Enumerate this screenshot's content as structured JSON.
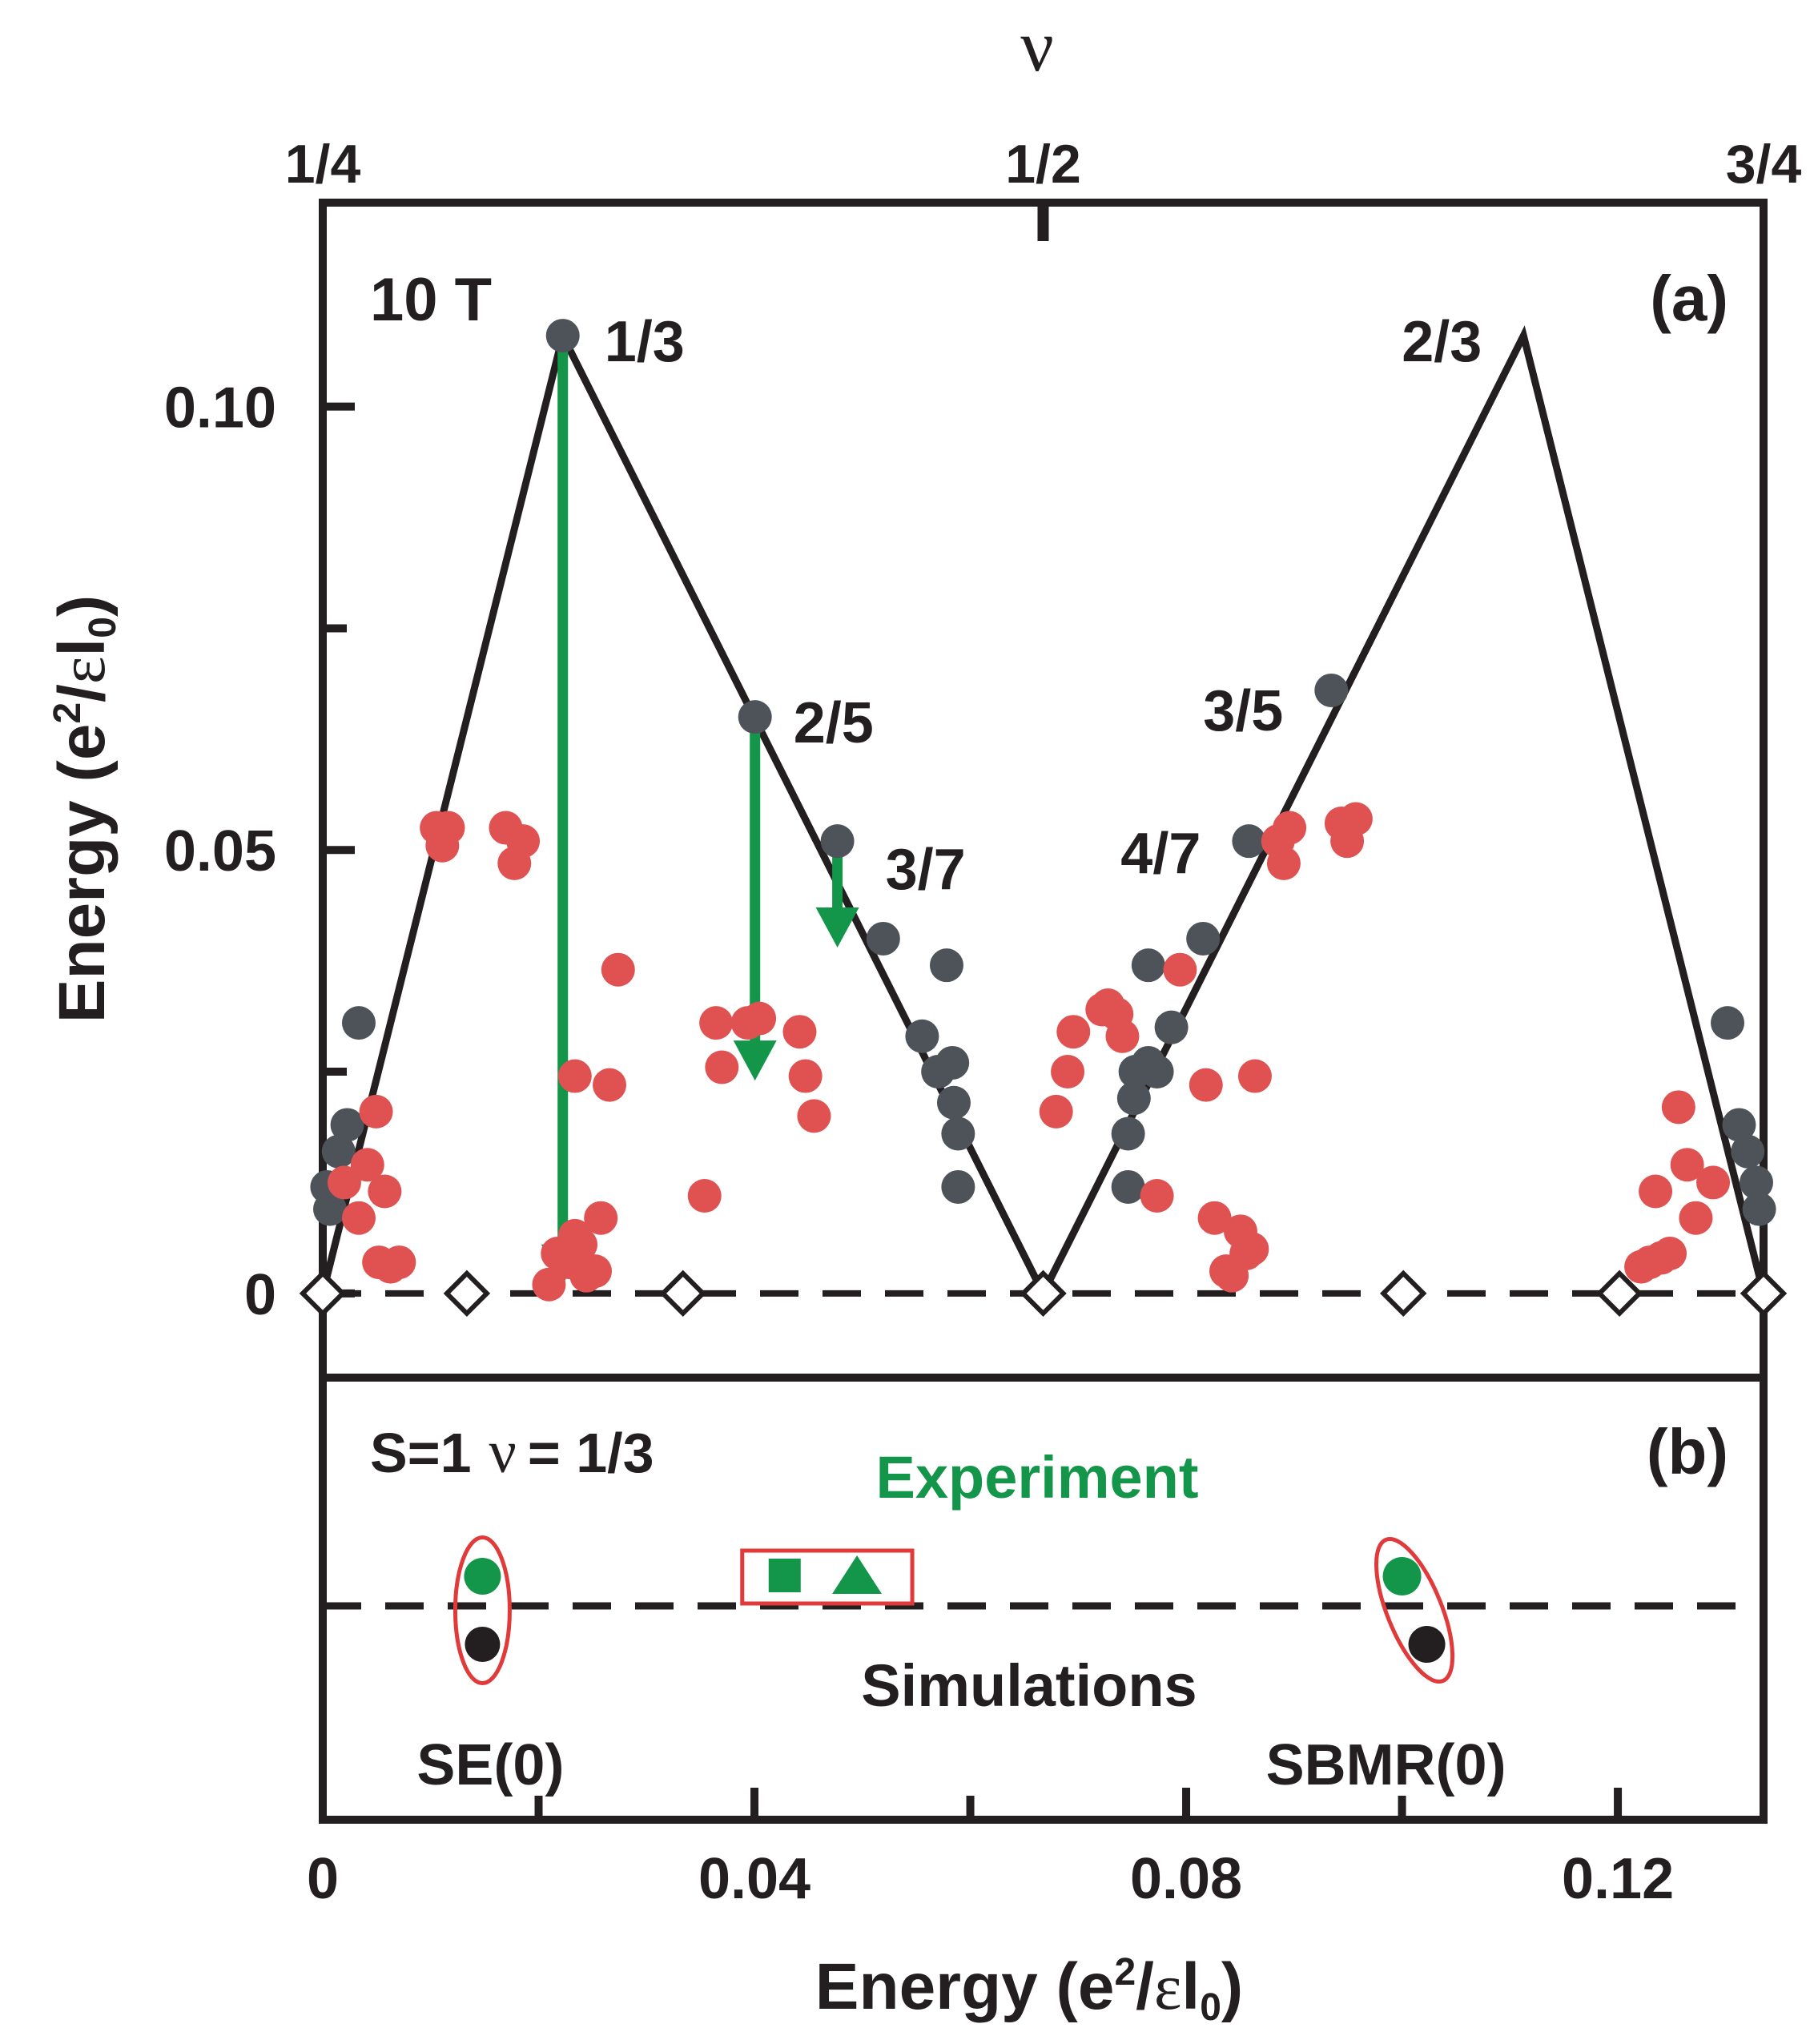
{
  "chart_data": [
    {
      "type": "scatter",
      "panel_label": "(a)",
      "field_label": "10 T",
      "top_axis": {
        "title": "ν",
        "ticks": [
          {
            "value": 0.25,
            "label": "1/4"
          },
          {
            "value": 0.5,
            "label": "1/2"
          },
          {
            "value": 0.75,
            "label": "3/4"
          }
        ],
        "range": [
          0.25,
          0.75
        ]
      },
      "ylabel": "Energy (e²/εl₀)",
      "ylim": [
        -0.0095,
        0.123
      ],
      "yticks": [
        {
          "value": 0,
          "label": "0"
        },
        {
          "value": 0.05,
          "label": "0.05"
        },
        {
          "value": 0.1,
          "label": "0.10"
        }
      ],
      "yticks_minor": [
        0.025,
        0.075
      ],
      "peak_line": {
        "color": "#231f20",
        "points": [
          [
            0.25,
            0
          ],
          [
            0.3333,
            0.108
          ],
          [
            0.5,
            0
          ],
          [
            0.6667,
            0.108
          ],
          [
            0.75,
            0
          ]
        ]
      },
      "zero_line": {
        "y": 0,
        "style": "dashed"
      },
      "series": [
        {
          "name": "gap energies",
          "color": "#4d5359",
          "points": [
            [
              0.3333,
              0.108
            ],
            [
              0.4,
              0.065
            ],
            [
              0.4286,
              0.051
            ],
            [
              0.6,
              0.068
            ],
            [
              0.5714,
              0.051
            ],
            [
              0.2515,
              0.012
            ],
            [
              0.2525,
              0.0095
            ],
            [
              0.2555,
              0.016
            ],
            [
              0.2585,
              0.019
            ],
            [
              0.2625,
              0.0305
            ],
            [
              0.4445,
              0.04
            ],
            [
              0.458,
              0.029
            ],
            [
              0.4665,
              0.037
            ],
            [
              0.4635,
              0.025
            ],
            [
              0.4685,
              0.026
            ],
            [
              0.469,
              0.0215
            ],
            [
              0.4705,
              0.018
            ],
            [
              0.4705,
              0.012
            ],
            [
              0.5295,
              0.012
            ],
            [
              0.5295,
              0.018
            ],
            [
              0.5315,
              0.022
            ],
            [
              0.532,
              0.025
            ],
            [
              0.5365,
              0.026
            ],
            [
              0.5365,
              0.037
            ],
            [
              0.5395,
              0.025
            ],
            [
              0.5445,
              0.03
            ],
            [
              0.5555,
              0.04
            ],
            [
              0.7375,
              0.0305
            ],
            [
              0.7415,
              0.019
            ],
            [
              0.7445,
              0.016
            ],
            [
              0.7475,
              0.0125
            ],
            [
              0.7485,
              0.0095
            ]
          ]
        },
        {
          "name": "red points",
          "color": "#e05252",
          "points": [
            [
              0.2575,
              0.0125
            ],
            [
              0.2625,
              0.0085
            ],
            [
              0.2655,
              0.0145
            ],
            [
              0.2685,
              0.0205
            ],
            [
              0.2695,
              0.0035
            ],
            [
              0.2715,
              0.0115
            ],
            [
              0.2735,
              0.003
            ],
            [
              0.2765,
              0.0035
            ],
            [
              0.2895,
              0.0525
            ],
            [
              0.2915,
              0.0505
            ],
            [
              0.2935,
              0.0525
            ],
            [
              0.3135,
              0.0525
            ],
            [
              0.3165,
              0.0485
            ],
            [
              0.3195,
              0.051
            ],
            [
              0.3285,
              0.001
            ],
            [
              0.3315,
              0.0045
            ],
            [
              0.3355,
              0.0035
            ],
            [
              0.3375,
              0.0245
            ],
            [
              0.3375,
              0.0065
            ],
            [
              0.3395,
              0.0055
            ],
            [
              0.3415,
              0.002
            ],
            [
              0.3445,
              0.0025
            ],
            [
              0.3465,
              0.0085
            ],
            [
              0.3495,
              0.0235
            ],
            [
              0.3525,
              0.0365
            ],
            [
              0.3825,
              0.011
            ],
            [
              0.3865,
              0.0305
            ],
            [
              0.3885,
              0.0255
            ],
            [
              0.3975,
              0.0305
            ],
            [
              0.4015,
              0.031
            ],
            [
              0.4155,
              0.0295
            ],
            [
              0.4175,
              0.0245
            ],
            [
              0.4205,
              0.02
            ],
            [
              0.5045,
              0.0205
            ],
            [
              0.5085,
              0.025
            ],
            [
              0.5105,
              0.0295
            ],
            [
              0.5205,
              0.032
            ],
            [
              0.5225,
              0.0325
            ],
            [
              0.5255,
              0.0315
            ],
            [
              0.5275,
              0.029
            ],
            [
              0.5395,
              0.011
            ],
            [
              0.5475,
              0.0365
            ],
            [
              0.5565,
              0.0235
            ],
            [
              0.5595,
              0.0085
            ],
            [
              0.5635,
              0.0025
            ],
            [
              0.5655,
              0.002
            ],
            [
              0.5685,
              0.007
            ],
            [
              0.5705,
              0.0045
            ],
            [
              0.5725,
              0.005
            ],
            [
              0.5735,
              0.0245
            ],
            [
              0.5815,
              0.051
            ],
            [
              0.5835,
              0.0485
            ],
            [
              0.5855,
              0.0525
            ],
            [
              0.6035,
              0.053
            ],
            [
              0.6055,
              0.051
            ],
            [
              0.6085,
              0.0535
            ],
            [
              0.7075,
              0.003
            ],
            [
              0.7105,
              0.0035
            ],
            [
              0.7125,
              0.0115
            ],
            [
              0.7145,
              0.004
            ],
            [
              0.7175,
              0.0045
            ],
            [
              0.7205,
              0.021
            ],
            [
              0.7235,
              0.0145
            ],
            [
              0.7265,
              0.0085
            ],
            [
              0.7325,
              0.0125
            ]
          ]
        },
        {
          "name": "zero-energy diamonds",
          "style": "open",
          "points": [
            [
              0.25,
              0
            ],
            [
              0.3,
              0
            ],
            [
              0.375,
              0
            ],
            [
              0.5,
              0
            ],
            [
              0.625,
              0
            ],
            [
              0.7,
              0
            ],
            [
              0.75,
              0
            ]
          ]
        }
      ],
      "annotations": [
        {
          "text": "1/3",
          "x": 0.3333,
          "y": 0.108
        },
        {
          "text": "2/5",
          "x": 0.4,
          "y": 0.065
        },
        {
          "text": "3/7",
          "x": 0.4286,
          "y": 0.051
        },
        {
          "text": "2/3",
          "x": 0.6667,
          "y": 0.108
        },
        {
          "text": "3/5",
          "x": 0.6,
          "y": 0.068
        },
        {
          "text": "4/7",
          "x": 0.5714,
          "y": 0.051
        }
      ],
      "arrows": [
        {
          "x": 0.3333,
          "from": 0.108,
          "to": 0.001,
          "color": "#13964a"
        },
        {
          "x": 0.4,
          "from": 0.065,
          "to": 0.024,
          "color": "#13964a"
        },
        {
          "x": 0.4286,
          "from": 0.05,
          "to": 0.039,
          "color": "#13964a"
        }
      ]
    },
    {
      "type": "scatter",
      "panel_label": "(b)",
      "title_parts": [
        "S=1",
        "ν",
        "= 1/3"
      ],
      "xlabel": "Energy (e²/εl₀)",
      "xlim": [
        0,
        0.1335
      ],
      "xticks": [
        {
          "value": 0,
          "label": "0"
        },
        {
          "value": 0.04,
          "label": "0.04"
        },
        {
          "value": 0.08,
          "label": "0.08"
        },
        {
          "value": 0.12,
          "label": "0.12"
        }
      ],
      "xticks_minor": [
        0.02,
        0.06,
        0.1
      ],
      "legend_texts": {
        "experiment": "Experiment",
        "simulations": "Simulations"
      },
      "experiment_color": "#13964a",
      "points": {
        "experiment": [
          {
            "x": 0.0148,
            "marker": "circle"
          },
          {
            "x": 0.0428,
            "marker": "square"
          },
          {
            "x": 0.0495,
            "marker": "triangle"
          },
          {
            "x": 0.1,
            "marker": "circle"
          }
        ],
        "simulation": [
          {
            "x": 0.0148,
            "marker": "circle"
          },
          {
            "x": 0.1023,
            "marker": "circle"
          }
        ]
      },
      "labels": [
        {
          "text": "SE(0)",
          "x": 0.0148
        },
        {
          "text": "SBMR(0)",
          "x": 0.1
        }
      ],
      "highlight_color": "#e03a3a"
    }
  ]
}
